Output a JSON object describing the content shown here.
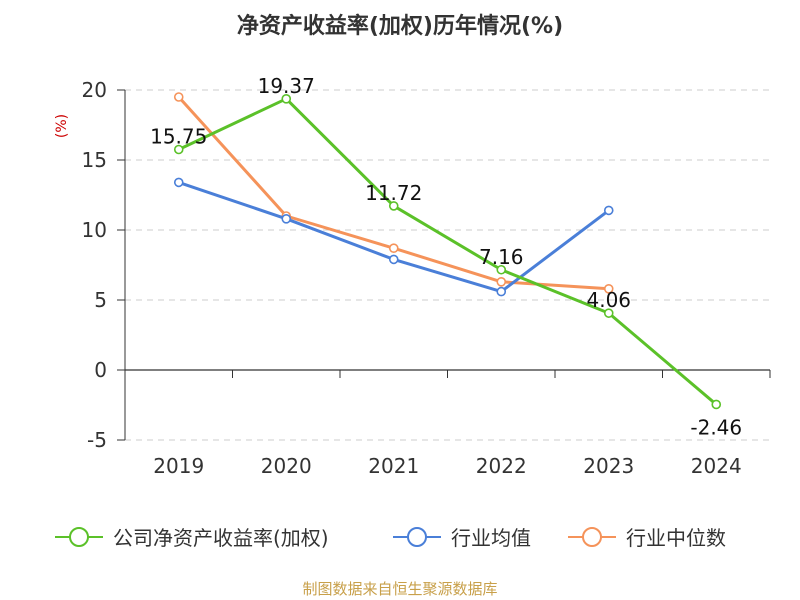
{
  "chart_data": {
    "type": "line",
    "title": "净资产收益率(加权)历年情况(%)",
    "ylabel": "(%)",
    "categories": [
      "2019",
      "2020",
      "2021",
      "2022",
      "2023",
      "2024"
    ],
    "ylim": [
      -5,
      20
    ],
    "yticks": [
      "-5",
      "0",
      "5",
      "10",
      "15",
      "20"
    ],
    "grid": true,
    "legend_position": "bottom",
    "series": [
      {
        "name": "公司净资产收益率(加权)",
        "color": "#5bc129",
        "values": [
          15.75,
          19.37,
          11.72,
          7.16,
          4.06,
          -2.46
        ],
        "labels": [
          "15.75",
          "19.37",
          "11.72",
          "7.16",
          "4.06",
          "-2.46"
        ]
      },
      {
        "name": "行业均值",
        "color": "#4a7fd8",
        "values": [
          13.4,
          10.8,
          7.9,
          5.6,
          11.4,
          null
        ]
      },
      {
        "name": "行业中位数",
        "color": "#f5935a",
        "values": [
          19.5,
          11.0,
          8.7,
          6.3,
          5.8,
          null
        ]
      }
    ]
  },
  "source": "制图数据来自恒生聚源数据库"
}
